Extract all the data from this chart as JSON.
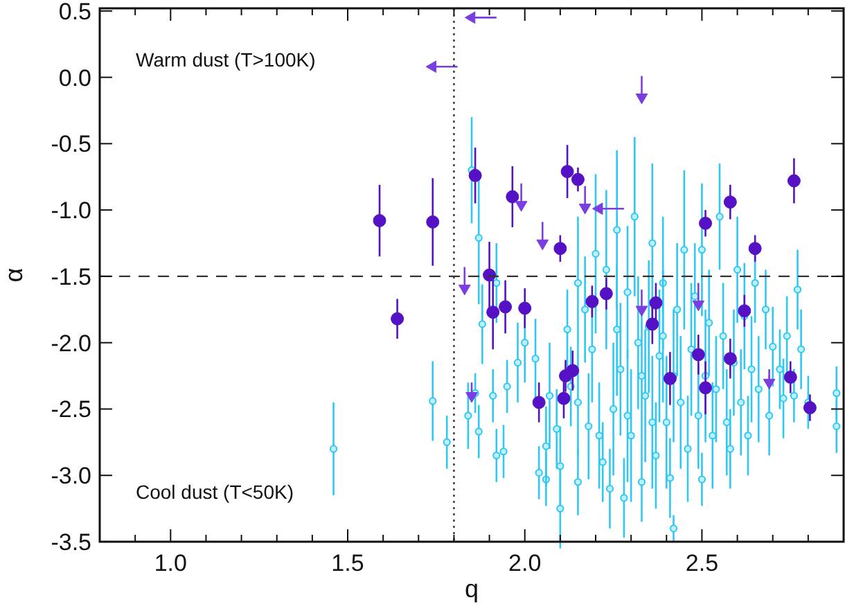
{
  "chart_data": {
    "type": "scatter",
    "xlabel": "q",
    "ylabel": "α",
    "xlim": [
      0.8,
      2.9
    ],
    "ylim": [
      -3.5,
      0.52
    ],
    "xticks": [
      {
        "value": 0.9,
        "label": null
      },
      {
        "value": 1.0,
        "label": "1.0"
      },
      {
        "value": 1.1,
        "label": null
      },
      {
        "value": 1.2,
        "label": null
      },
      {
        "value": 1.3,
        "label": null
      },
      {
        "value": 1.4,
        "label": null
      },
      {
        "value": 1.5,
        "label": "1.5"
      },
      {
        "value": 1.6,
        "label": null
      },
      {
        "value": 1.7,
        "label": null
      },
      {
        "value": 1.8,
        "label": null
      },
      {
        "value": 1.9,
        "label": null
      },
      {
        "value": 2.0,
        "label": "2.0"
      },
      {
        "value": 2.1,
        "label": null
      },
      {
        "value": 2.2,
        "label": null
      },
      {
        "value": 2.3,
        "label": null
      },
      {
        "value": 2.4,
        "label": null
      },
      {
        "value": 2.5,
        "label": "2.5"
      },
      {
        "value": 2.6,
        "label": null
      },
      {
        "value": 2.7,
        "label": null
      },
      {
        "value": 2.8,
        "label": null
      }
    ],
    "yticks": [
      {
        "value": 0.5,
        "label": "0.5"
      },
      {
        "value": 0,
        "label": "0.0"
      },
      {
        "value": -0.5,
        "label": "-0.5"
      },
      {
        "value": -1,
        "label": "-1.0"
      },
      {
        "value": -1.5,
        "label": "-1.5"
      },
      {
        "value": -2,
        "label": "-2.0"
      },
      {
        "value": -2.5,
        "label": "-2.5"
      },
      {
        "value": -3,
        "label": "-3.0"
      },
      {
        "value": -3.5,
        "label": "-3.5"
      }
    ],
    "grid": false,
    "annotations": [
      "Warm dust (T>100K)",
      "Cool dust (T<50K)"
    ],
    "ref_lines": [
      {
        "axis": "y",
        "value": -1.5,
        "line_style": "dashed",
        "color": "#333333"
      },
      {
        "axis": "x",
        "value": 1.8,
        "line_style": "dotted",
        "color": "#333333"
      }
    ],
    "series": [
      {
        "color": "#2ec8f2",
        "marker": "circle",
        "x": [
          1.46,
          1.74,
          1.78,
          1.84,
          1.87,
          1.86,
          1.91,
          1.92,
          1.94,
          1.95,
          1.85,
          1.87,
          1.88,
          1.92,
          2.0,
          2.03,
          2.04,
          2.06,
          2.09,
          2.1,
          2.1,
          2.12,
          2.13,
          2.15,
          2.17,
          2.18,
          2.2,
          2.22,
          2.23,
          2.24,
          2.25,
          2.26,
          2.27,
          2.28,
          2.29,
          2.3,
          2.31,
          2.32,
          2.33,
          2.34,
          2.35,
          2.36,
          2.37,
          2.38,
          2.39,
          2.4,
          2.41,
          2.42,
          2.42,
          2.43,
          2.44,
          2.45,
          2.46,
          2.47,
          2.48,
          2.49,
          2.5,
          2.51,
          2.52,
          2.53,
          2.54,
          2.56,
          2.57,
          2.58,
          2.59,
          2.6,
          2.61,
          2.62,
          2.63,
          2.64,
          2.65,
          2.66,
          2.68,
          2.69,
          2.7,
          2.72,
          2.73,
          2.74,
          2.76,
          2.77,
          2.78,
          2.8,
          2.88,
          2.88,
          2.15,
          2.19,
          2.21,
          2.26,
          2.29,
          2.33,
          2.36,
          2.39,
          2.5,
          2.55,
          2.15,
          2.07,
          2.06,
          1.98
        ],
        "values": [
          -2.8,
          -2.44,
          -2.75,
          -2.55,
          -2.67,
          -2.38,
          -2.4,
          -2.85,
          -2.82,
          -2.33,
          -0.7,
          -1.21,
          -1.86,
          -1.55,
          -2.0,
          -2.12,
          -2.98,
          -3.03,
          -2.65,
          -3.25,
          -2.93,
          -1.9,
          -2.33,
          -3.05,
          -1.75,
          -2.63,
          -1.33,
          -2.9,
          -1.45,
          -3.1,
          -2.5,
          -1.15,
          -2.2,
          -3.17,
          -1.62,
          -2.7,
          -1.05,
          -2.0,
          -3.05,
          -2.4,
          -1.88,
          -1.25,
          -2.85,
          -2.1,
          -1.55,
          -2.6,
          -3.02,
          -3.4,
          -2.25,
          -1.75,
          -2.45,
          -1.3,
          -2.8,
          -2.05,
          -1.65,
          -2.55,
          -3.03,
          -2.25,
          -1.85,
          -2.7,
          -2.35,
          -1.95,
          -2.6,
          -2.8,
          -2.15,
          -1.45,
          -2.45,
          -1.8,
          -2.7,
          -2.2,
          -1.55,
          -2.35,
          -1.75,
          -2.55,
          -2.03,
          -2.2,
          -2.42,
          -1.95,
          -2.4,
          -1.6,
          -2.05,
          -2.45,
          -2.38,
          -2.63,
          -2.45,
          -2.05,
          -2.7,
          -1.9,
          -2.55,
          -2.25,
          -2.6,
          -1.95,
          -1.3,
          -1.05,
          -1.55,
          -2.4,
          -2.78,
          -2.15
        ],
        "errors": [
          0.35,
          0.3,
          0.2,
          0.25,
          0.2,
          0.15,
          0.2,
          0.2,
          0.2,
          0.2,
          0.4,
          0.5,
          0.3,
          0.3,
          0.3,
          0.3,
          0.2,
          0.2,
          0.3,
          0.3,
          0.3,
          0.3,
          0.3,
          0.25,
          0.4,
          0.4,
          0.6,
          0.3,
          0.6,
          0.3,
          0.5,
          0.6,
          0.5,
          0.3,
          0.5,
          0.5,
          0.6,
          0.5,
          0.3,
          0.5,
          0.5,
          0.6,
          0.4,
          0.5,
          0.5,
          0.5,
          0.3,
          0.1,
          0.5,
          0.5,
          0.5,
          0.6,
          0.4,
          0.5,
          0.4,
          0.4,
          0.2,
          0.5,
          0.4,
          0.4,
          0.4,
          0.4,
          0.4,
          0.3,
          0.4,
          0.4,
          0.4,
          0.4,
          0.3,
          0.4,
          0.3,
          0.4,
          0.3,
          0.3,
          0.3,
          0.3,
          0.3,
          0.3,
          0.2,
          0.3,
          0.3,
          0.2,
          0.2,
          0.2,
          0.4,
          0.4,
          0.4,
          0.5,
          0.5,
          0.5,
          0.5,
          0.5,
          0.5,
          0.4,
          0.5,
          0.4,
          0.3,
          0.3
        ]
      },
      {
        "color": "#5512c4",
        "marker": "circle",
        "x": [
          1.59,
          1.74,
          1.86,
          1.965,
          2.12,
          2.15,
          2.76,
          2.51,
          2.58,
          2.65,
          2.1,
          1.9,
          1.64,
          1.91,
          1.945,
          2.0,
          2.19,
          2.23,
          2.37,
          2.36,
          2.62,
          2.49,
          2.58,
          2.41,
          2.51,
          2.75,
          2.805,
          2.04,
          2.11,
          2.115,
          2.135
        ],
        "values": [
          -1.08,
          -1.09,
          -0.74,
          -0.9,
          -0.71,
          -0.77,
          -0.78,
          -1.1,
          -0.94,
          -1.29,
          -1.29,
          -1.49,
          -1.82,
          -1.77,
          -1.73,
          -1.74,
          -1.69,
          -1.63,
          -1.7,
          -1.86,
          -1.76,
          -2.09,
          -2.12,
          -2.27,
          -2.34,
          -2.26,
          -2.49,
          -2.45,
          -2.42,
          -2.25,
          -2.21
        ],
        "errors": [
          0.27,
          0.33,
          0.21,
          0.23,
          0.2,
          0.09,
          0.17,
          0.1,
          0.13,
          0.1,
          0.1,
          0.25,
          0.15,
          0.28,
          0.2,
          0.15,
          0.12,
          0.12,
          0.15,
          0.15,
          0.12,
          0.15,
          0.15,
          0.2,
          0.2,
          0.12,
          0.1,
          0.15,
          0.15,
          0.12,
          0.15
        ]
      },
      {
        "color": "#7a3ee0",
        "marker": "triangle",
        "x": [
          2.33,
          1.99,
          2.17,
          2.05,
          1.83,
          1.85,
          2.33,
          2.49,
          2.69
        ],
        "values": [
          -0.15,
          -0.96,
          -0.98,
          -1.25,
          -1.59,
          -2.4,
          -1.75,
          -1.71,
          -2.3
        ],
        "errors": [
          [
            -0.15,
            0.01
          ],
          [
            -0.96,
            -0.8
          ],
          [
            -0.98,
            -0.82
          ],
          [
            -1.25,
            -1.09
          ],
          [
            -1.59,
            -1.43
          ],
          [
            -2.4,
            -2.3
          ],
          [
            -1.75,
            -1.6
          ],
          [
            -1.71,
            -1.55
          ],
          [
            -2.3,
            -2.2
          ]
        ]
      },
      {
        "color": "#7a3ee0",
        "marker": "triangle",
        "x": [
          1.85,
          1.74,
          2.21
        ],
        "values": [
          0.45,
          0.08,
          -0.99
        ],
        "xerrors": [
          [
            1.85,
            1.92
          ],
          [
            1.74,
            1.81
          ],
          [
            2.21,
            2.28
          ]
        ]
      }
    ]
  }
}
